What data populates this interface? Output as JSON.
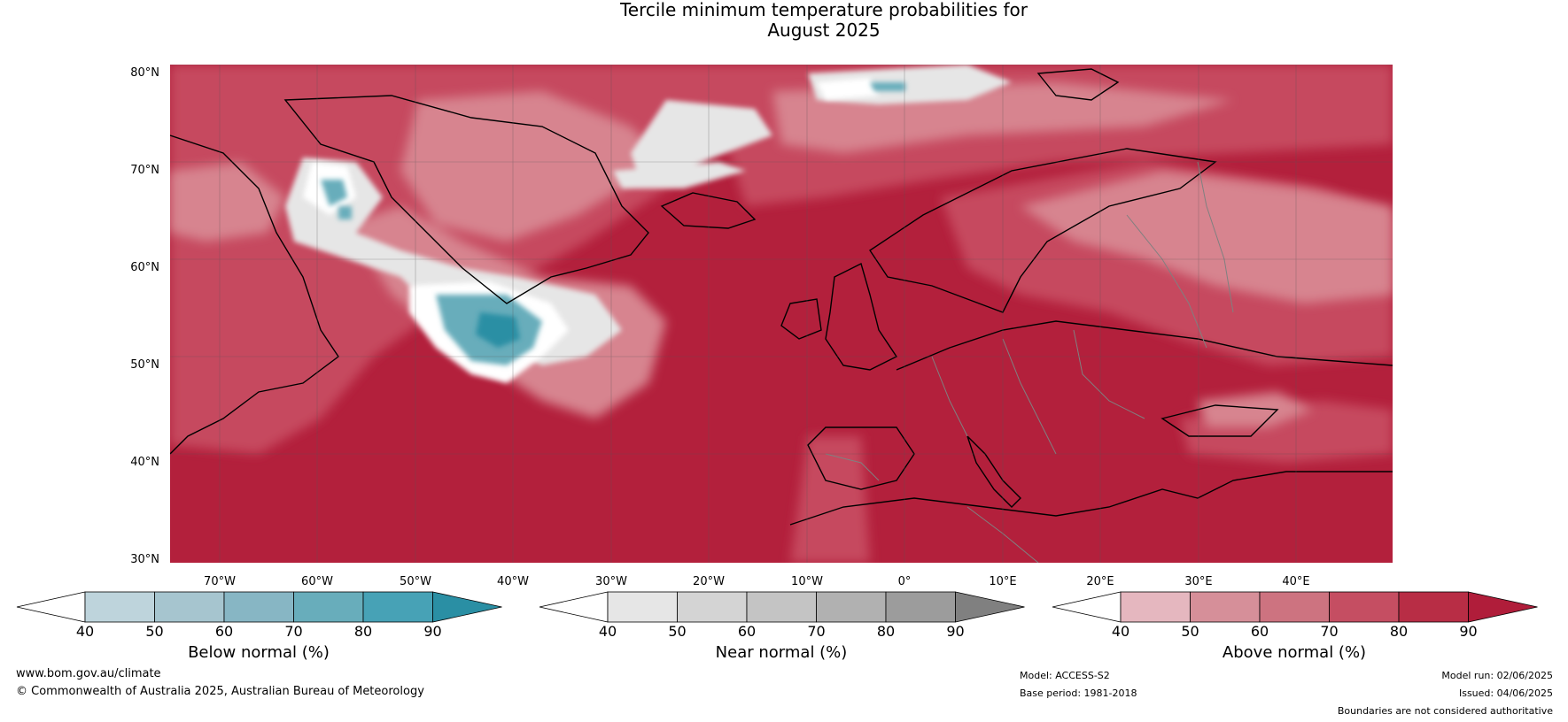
{
  "title": {
    "line1": "Tercile minimum temperature probabilities for",
    "line2": "August 2025"
  },
  "map": {
    "lat_labels": [
      "80°N",
      "70°N",
      "60°N",
      "50°N",
      "40°N",
      "30°N"
    ],
    "lon_labels": [
      "70°W",
      "60°W",
      "50°W",
      "40°W",
      "30°W",
      "20°W",
      "10°W",
      "0°",
      "10°E",
      "20°E",
      "30°E",
      "40°E"
    ],
    "colors": {
      "above_dominant": "#b3203c",
      "above_mid": "#c64a5e",
      "above_light": "#d7848f",
      "near_light": "#e6e6e6",
      "below": "#4da7b8",
      "coastline": "#000000",
      "borders": "#808080"
    }
  },
  "colorbars": [
    {
      "label": "Below normal (%)",
      "ticks": [
        "40",
        "50",
        "60",
        "70",
        "80",
        "90"
      ],
      "colors": [
        "#ffffff",
        "#bed4dc",
        "#a6c5cf",
        "#87b6c4",
        "#68adbb",
        "#47a2b6",
        "#2a8fa4"
      ]
    },
    {
      "label": "Near normal (%)",
      "ticks": [
        "40",
        "50",
        "60",
        "70",
        "80",
        "90"
      ],
      "colors": [
        "#ffffff",
        "#e6e6e6",
        "#d4d4d4",
        "#c4c4c4",
        "#b1b1b1",
        "#9c9c9c",
        "#808080"
      ]
    },
    {
      "label": "Above normal (%)",
      "ticks": [
        "40",
        "50",
        "60",
        "70",
        "80",
        "90"
      ],
      "colors": [
        "#ffffff",
        "#e5b7bf",
        "#d68f99",
        "#cd7380",
        "#c54e62",
        "#b82d45",
        "#b01d3a"
      ]
    }
  ],
  "footer": {
    "website": "www.bom.gov.au/climate",
    "copyright": "© Commonwealth of Australia 2025, Australian Bureau of Meteorology",
    "model": "Model: ACCESS-S2",
    "base_period": "Base period: 1981-2018",
    "model_run": "Model run: 02/06/2025",
    "issued": "Issued: 04/06/2025",
    "disclaimer": "Boundaries are not considered authoritative"
  }
}
